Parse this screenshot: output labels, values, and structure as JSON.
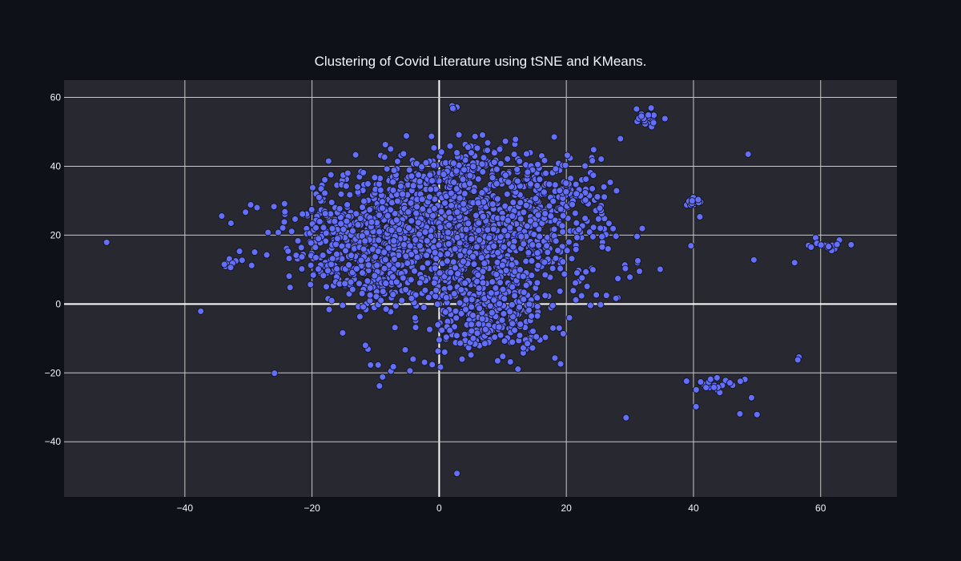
{
  "chart_data": {
    "type": "scatter",
    "title": "Clustering of Covid Literature using tSNE and KMeans.",
    "xlabel": "",
    "ylabel": "",
    "xlim": [
      -59,
      72
    ],
    "ylim": [
      -56,
      65
    ],
    "x_ticks": [
      -40,
      -20,
      0,
      20,
      40,
      60
    ],
    "y_ticks": [
      -40,
      -20,
      0,
      20,
      40,
      60
    ],
    "x_tick_labels": [
      "−40",
      "−20",
      "0",
      "20",
      "40",
      "60"
    ],
    "y_tick_labels": [
      "−40",
      "−20",
      "0",
      "20",
      "40",
      "60"
    ],
    "grid": true,
    "legend": "none",
    "colors": {
      "page_background": "#0e1118",
      "plot_background": "#282830",
      "grid": "#c8c8c8",
      "zero_line": "#ffffff",
      "marker_fill": "#636efa",
      "marker_outline": "#14141e",
      "text": "#f2f5fa"
    },
    "outliers": [
      [
        -52.3,
        17.9
      ],
      [
        -37.5,
        -2.1
      ],
      [
        -25.9,
        -20.1
      ],
      [
        2.8,
        -49.2
      ],
      [
        29.4,
        -33.0
      ],
      [
        48.6,
        43.5
      ],
      [
        18.1,
        48.5
      ],
      [
        28.5,
        48.0
      ],
      [
        49.5,
        12.8
      ],
      [
        55.9,
        12.0
      ],
      [
        39.6,
        16.9
      ],
      [
        41.0,
        25.3
      ],
      [
        -17.4,
        41.5
      ],
      [
        20.4,
        18.0
      ],
      [
        27.9,
        32.9
      ],
      [
        23.8,
        -0.4
      ],
      [
        19.1,
        -17.4
      ],
      [
        18.2,
        -15.7
      ],
      [
        16.7,
        -9.7
      ],
      [
        30.0,
        7.8
      ],
      [
        28.1,
        1.8
      ],
      [
        26.3,
        2.5
      ],
      [
        31.2,
        12.0
      ],
      [
        31.5,
        9.5
      ],
      [
        22.0,
        6.6
      ],
      [
        21.5,
        1.2
      ],
      [
        20.5,
        -4.0
      ],
      [
        0.1,
        -5.5
      ],
      [
        -1.1,
        -17.6
      ],
      [
        -2.3,
        -16.9
      ],
      [
        -4.1,
        -16.0
      ],
      [
        -4.6,
        -19.4
      ],
      [
        -9.4,
        -23.8
      ],
      [
        -8.9,
        -21.2
      ],
      [
        -7.6,
        -19.5
      ],
      [
        -7.2,
        -18.2
      ],
      [
        -10.8,
        -17.7
      ],
      [
        -11.2,
        -13.1
      ],
      [
        -11.6,
        -12.0
      ],
      [
        -9.6,
        -17.7
      ],
      [
        -3.7,
        -6.8
      ],
      [
        -3.7,
        -4.8
      ],
      [
        -1.5,
        -7.4
      ],
      [
        56.6,
        -15.4
      ],
      [
        56.4,
        -16.2
      ],
      [
        50.0,
        -32.1
      ],
      [
        47.3,
        -31.9
      ],
      [
        40.4,
        -29.8
      ],
      [
        3.6,
        -16.0
      ],
      [
        5.0,
        -14.8
      ],
      [
        12.4,
        -18.9
      ],
      [
        11.2,
        -16.8
      ],
      [
        9.2,
        -16.5
      ],
      [
        10.0,
        -15.2
      ],
      [
        -21.4,
        14.4
      ],
      [
        -22.3,
        13.1
      ],
      [
        -24.0,
        16.1
      ],
      [
        -25.3,
        20.8
      ],
      [
        -24.6,
        22.1
      ],
      [
        -29.5,
        11.2
      ],
      [
        -31.4,
        15.3
      ],
      [
        -31.0,
        12.7
      ],
      [
        -32.0,
        12.5
      ],
      [
        -33.6,
        10.9
      ],
      [
        -33.2,
        12.2
      ],
      [
        -33.0,
        13.1
      ],
      [
        -32.5,
        11.8
      ],
      [
        -33.8,
        11.5
      ],
      [
        -32.8,
        10.6
      ],
      [
        24.3,
        44.8
      ],
      [
        24.0,
        42.5
      ],
      [
        24.1,
        41.6
      ],
      [
        26.0,
        24.8
      ],
      [
        26.7,
        23.4
      ],
      [
        20.2,
        28.0
      ],
      [
        23.8,
        38.1
      ],
      [
        58.1,
        17.0
      ],
      [
        58.5,
        16.5
      ],
      [
        64.8,
        17.2
      ]
    ],
    "clusters": [
      {
        "cx": 32.6,
        "cy": 53.8,
        "sx": 0.9,
        "sy": 1.3,
        "n": 24,
        "seed": 11
      },
      {
        "cx": 39.8,
        "cy": 29.8,
        "sx": 0.8,
        "sy": 0.7,
        "n": 16,
        "seed": 12
      },
      {
        "cx": 61.2,
        "cy": 17.2,
        "sx": 1.0,
        "sy": 1.0,
        "n": 14,
        "seed": 13
      },
      {
        "cx": 44.0,
        "cy": -23.5,
        "sx": 2.8,
        "sy": 1.5,
        "n": 22,
        "seed": 14
      },
      {
        "cx": 2.2,
        "cy": 57.3,
        "sx": 0.4,
        "sy": 0.6,
        "n": 4,
        "seed": 15
      },
      {
        "cx": -4.5,
        "cy": 22.0,
        "sx": 9.0,
        "sy": 8.5,
        "n": 780,
        "seed": 21
      },
      {
        "cx": 8.5,
        "cy": 20.0,
        "sx": 8.5,
        "sy": 9.5,
        "n": 560,
        "seed": 22
      },
      {
        "cx": 8.0,
        "cy": 0.0,
        "sx": 4.2,
        "sy": 5.0,
        "n": 240,
        "seed": 23
      },
      {
        "cx": 5.0,
        "cy": 39.0,
        "sx": 6.5,
        "sy": 4.0,
        "n": 170,
        "seed": 24
      },
      {
        "cx": -12.0,
        "cy": 10.0,
        "sx": 5.0,
        "sy": 6.0,
        "n": 150,
        "seed": 25
      },
      {
        "cx": 19.0,
        "cy": 30.0,
        "sx": 3.5,
        "sy": 4.0,
        "n": 90,
        "seed": 26
      },
      {
        "cx": -9.0,
        "cy": 2.5,
        "sx": 2.5,
        "sy": 4.0,
        "n": 40,
        "seed": 27
      },
      {
        "cx": 7.5,
        "cy": -9.0,
        "sx": 5.0,
        "sy": 2.5,
        "n": 60,
        "seed": 28
      },
      {
        "cx": -18.0,
        "cy": 22.0,
        "sx": 2.5,
        "sy": 4.0,
        "n": 40,
        "seed": 29
      }
    ]
  }
}
